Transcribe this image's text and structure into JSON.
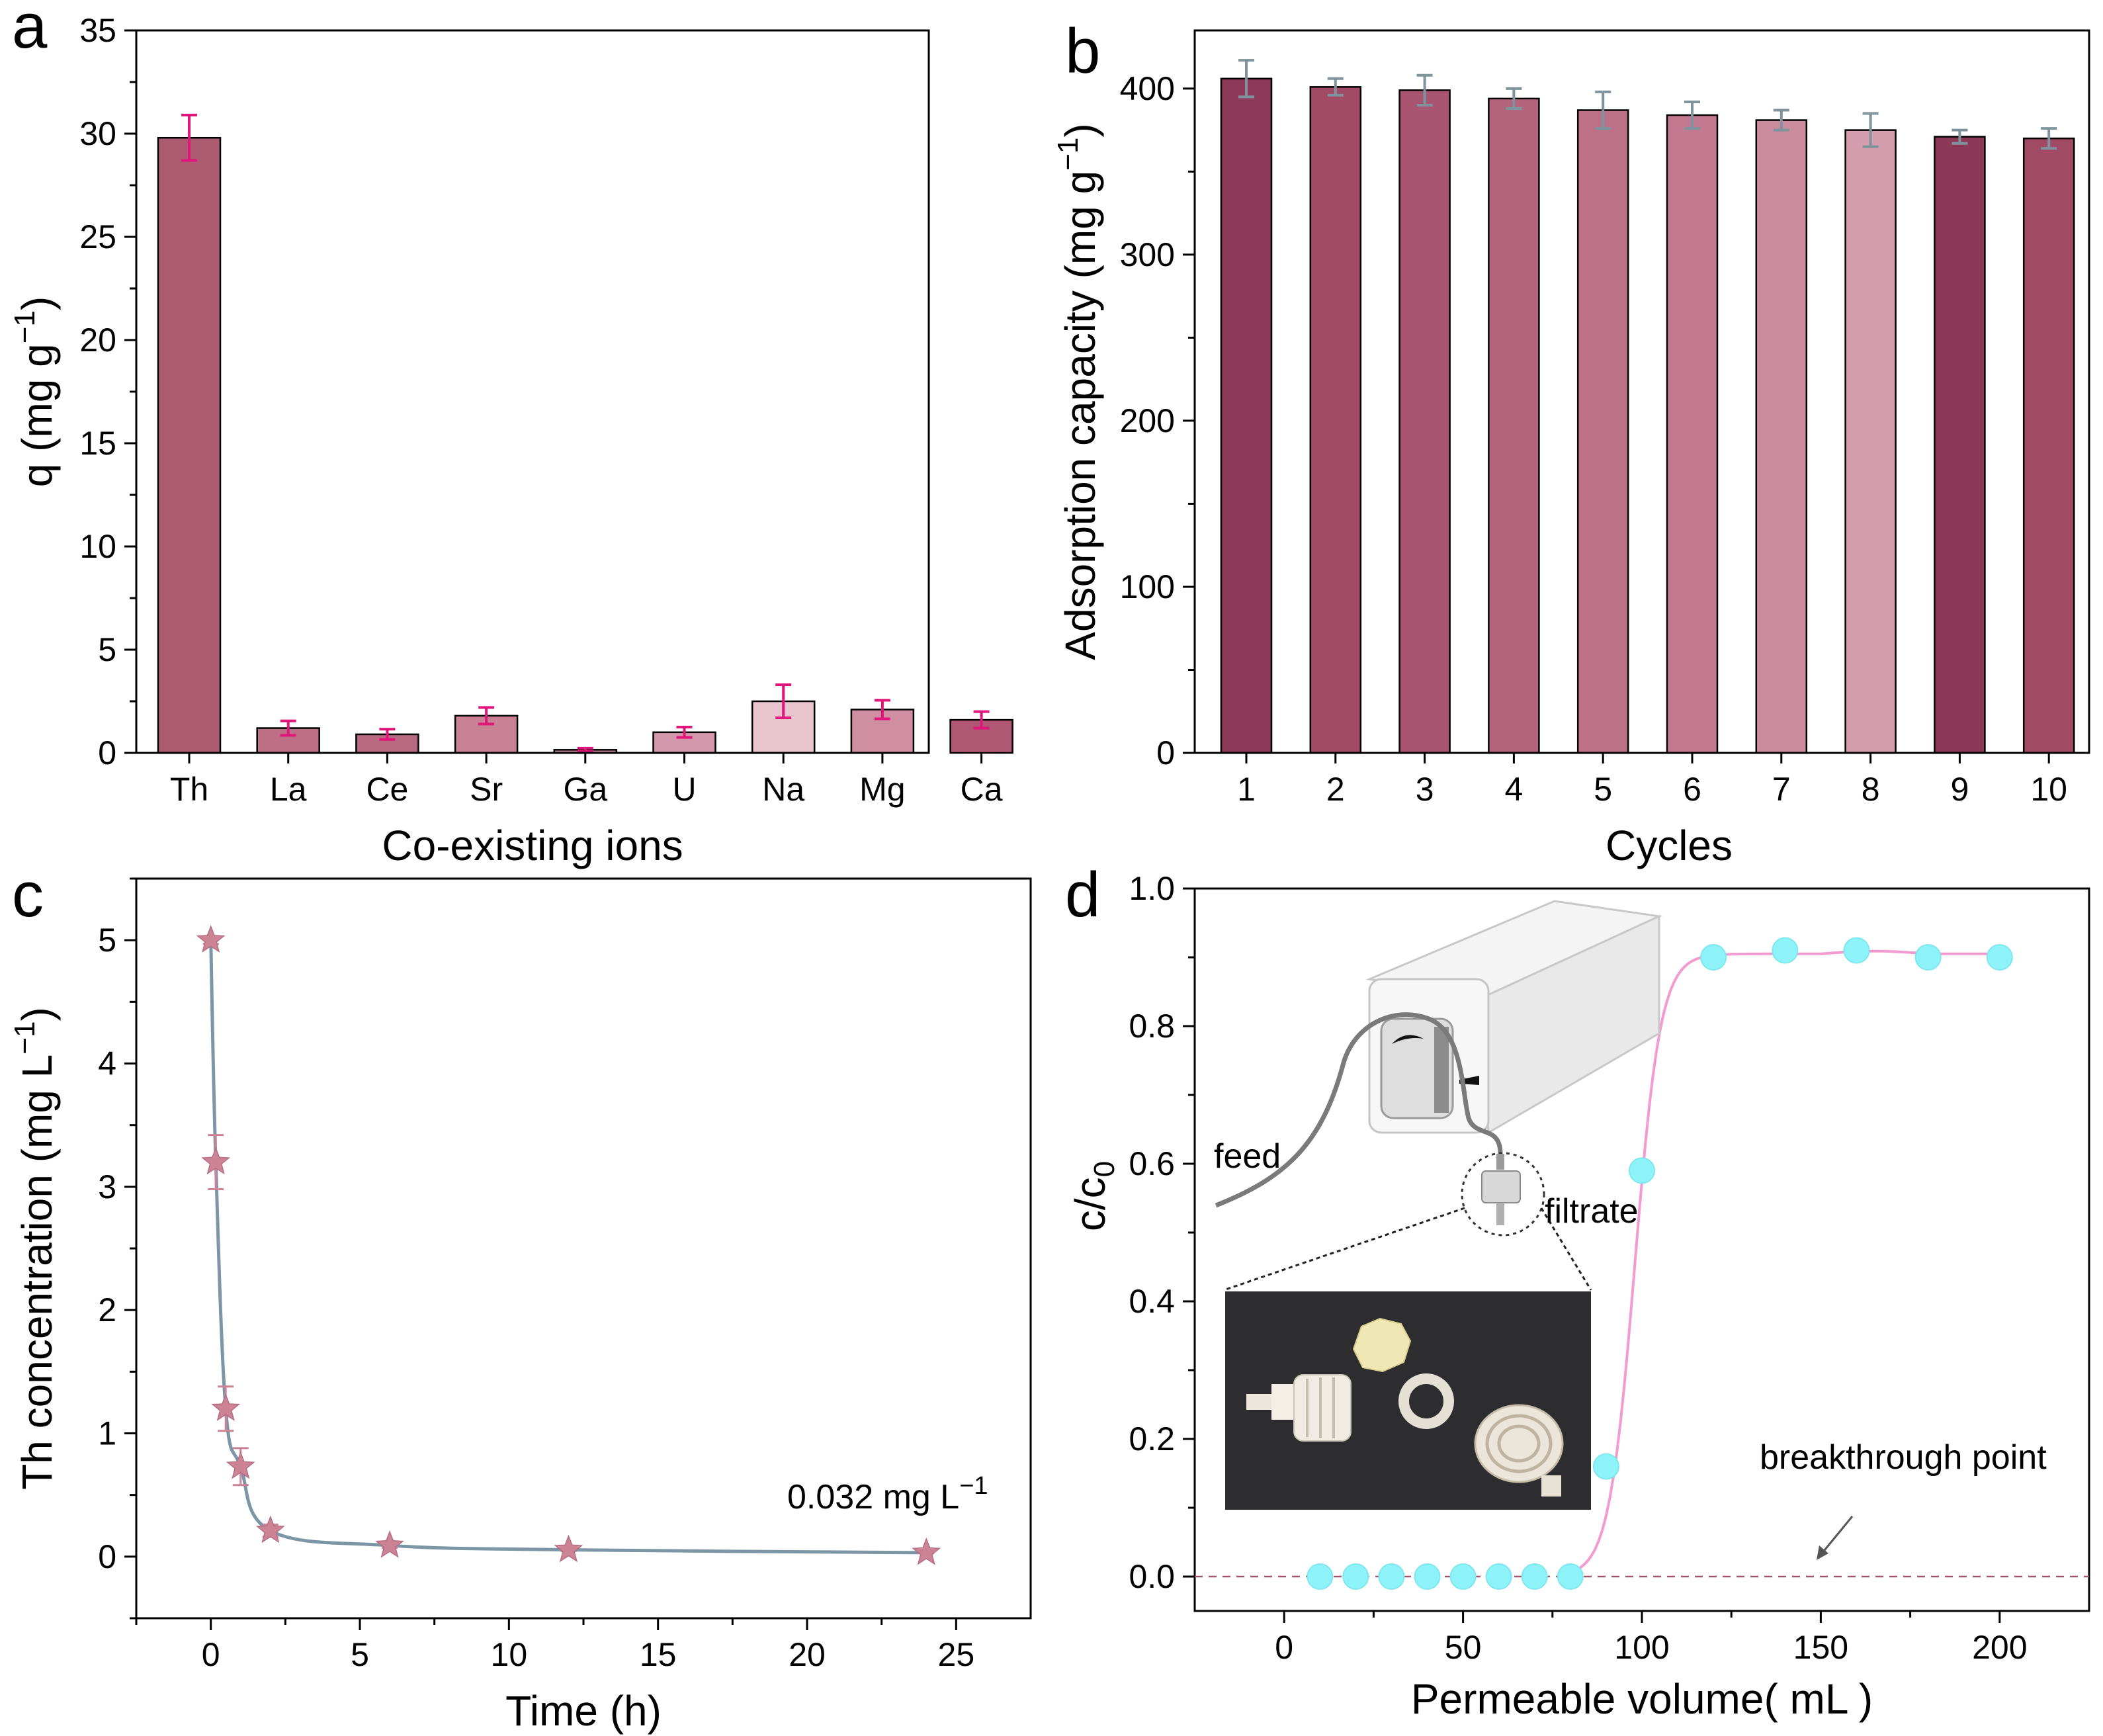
{
  "panel_letters": [
    "a",
    "b",
    "c",
    "d"
  ],
  "chart_data": [
    {
      "panel": "a",
      "type": "bar",
      "title": "",
      "xlabel": "Co-existing ions",
      "ylabel": "q (mg g",
      "ylabel_sup": "−1",
      "ylabel_close": ")",
      "categories": [
        "Th",
        "La",
        "Ce",
        "Sr",
        "Ga",
        "U",
        "Na",
        "Mg",
        "Ca"
      ],
      "values": [
        29.8,
        1.2,
        0.9,
        1.8,
        0.15,
        1.0,
        2.5,
        2.1,
        1.6
      ],
      "errors": [
        1.1,
        0.35,
        0.25,
        0.4,
        0.08,
        0.25,
        0.8,
        0.45,
        0.4
      ],
      "ylim": [
        0,
        35
      ],
      "yticks": [
        0,
        5,
        10,
        15,
        20,
        25,
        30,
        35
      ],
      "colors": [
        "#ac5b71",
        "#bd6f86",
        "#b86a82",
        "#c98196",
        "#c7889c",
        "#d396aa",
        "#e9c5cf",
        "#cf8ea2",
        "#b05873"
      ],
      "error_color": "#e0167a"
    },
    {
      "panel": "b",
      "type": "bar",
      "title": "",
      "xlabel": "Cycles",
      "ylabel": "Adsorption capacity (mg g",
      "ylabel_sup": "−1",
      "ylabel_close": ")",
      "categories": [
        "1",
        "2",
        "3",
        "4",
        "5",
        "6",
        "7",
        "8",
        "9",
        "10"
      ],
      "values": [
        406,
        401,
        399,
        394,
        387,
        384,
        381,
        375,
        371,
        370
      ],
      "errors": [
        11,
        5,
        9,
        6,
        11,
        8,
        6,
        10,
        4,
        6
      ],
      "ylim": [
        0,
        435
      ],
      "yticks": [
        0,
        100,
        200,
        300,
        400
      ],
      "colors": [
        "#8c3a58",
        "#a34a66",
        "#a95470",
        "#b4647c",
        "#bd7188",
        "#c37990",
        "#cc8ca0",
        "#d49eae",
        "#8b3957",
        "#a04a65"
      ],
      "error_color": "#7f939c"
    },
    {
      "panel": "c",
      "type": "line",
      "title": "",
      "xlabel": "Time (h)",
      "ylabel": "Th concentration (mg L",
      "ylabel_sup": "−1",
      "ylabel_close": ")",
      "x": [
        0,
        0.167,
        0.5,
        1,
        2,
        6,
        12,
        24
      ],
      "y": [
        5.0,
        3.2,
        1.2,
        0.73,
        0.21,
        0.09,
        0.055,
        0.032
      ],
      "errors": [
        0.03,
        0.22,
        0.18,
        0.15,
        0.05,
        0.02,
        0.01,
        0.005
      ],
      "xlim": [
        -2.5,
        27.5
      ],
      "ylim": [
        -0.5,
        5.5
      ],
      "xticks": [
        0,
        5,
        10,
        15,
        20,
        25
      ],
      "yticks": [
        0,
        1,
        2,
        3,
        4,
        5
      ],
      "line_color": "#7c96a6",
      "marker_color": "#cc8396",
      "annotation": "0.032 mg L",
      "annotation_sup": "−1"
    },
    {
      "panel": "d",
      "type": "scatter",
      "title": "",
      "xlabel": "Permeable volume( mL )",
      "ylabel": "c/c",
      "ylabel_sub": "0",
      "x": [
        10,
        20,
        30,
        40,
        50,
        60,
        70,
        80,
        90,
        100,
        120,
        140,
        160,
        180,
        200
      ],
      "y": [
        0,
        0,
        0,
        0,
        0,
        0,
        0,
        0,
        0.16,
        0.59,
        0.9,
        0.91,
        0.91,
        0.9,
        0.9
      ],
      "xlim": [
        -25,
        225
      ],
      "ylim": [
        -0.05,
        1.0
      ],
      "xticks": [
        0,
        50,
        100,
        150,
        200
      ],
      "yticks": [
        "0.0",
        "0.2",
        "0.4",
        "0.6",
        "0.8",
        "1.0"
      ],
      "marker_color": "#8ef3f8",
      "curve_color": "#f29bd0",
      "baseline_color": "#a5536c",
      "annotation": "breakthrough point",
      "inset_labels": {
        "feed": "feed",
        "filtrate": "filtrate"
      }
    }
  ]
}
